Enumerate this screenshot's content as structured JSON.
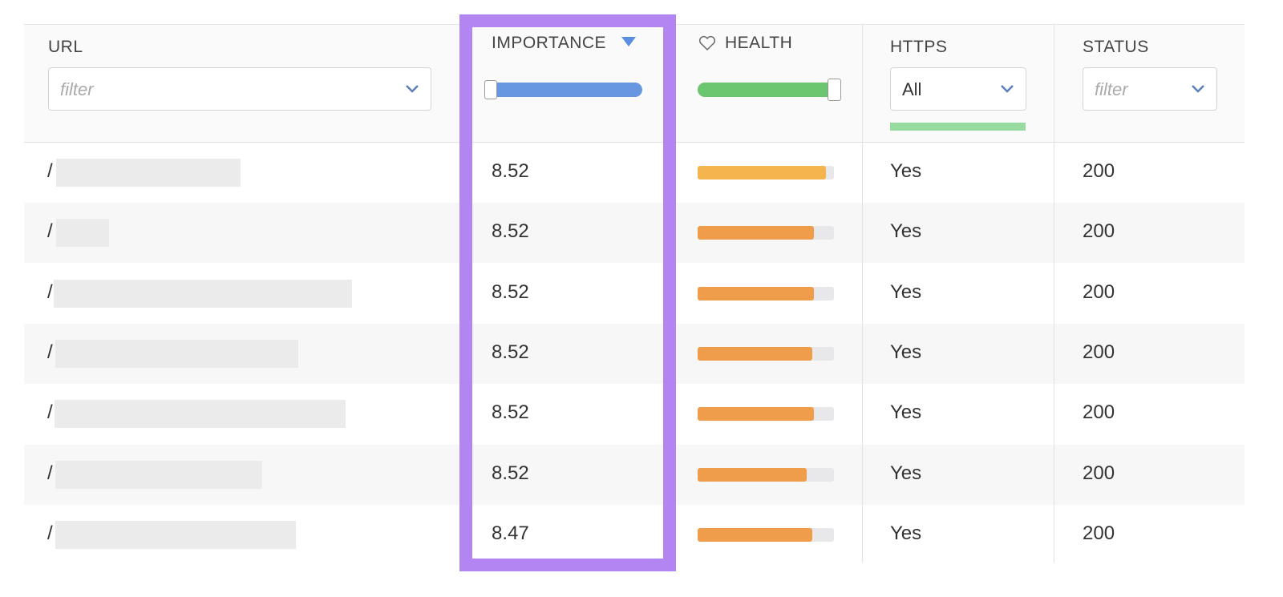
{
  "table": {
    "header": {
      "url": "URL",
      "url_filter": "filter",
      "importance": "IMPORTANCE",
      "health": "HEALTH",
      "https": "HTTPS",
      "https_filter": "All",
      "status": "STATUS",
      "status_filter": "filter"
    },
    "rows": [
      {
        "url": "/",
        "importance": 8.52,
        "health": 94,
        "health_color": "#f4b54e",
        "https": "Yes",
        "status": 200
      },
      {
        "url": "/",
        "importance": 8.52,
        "health": 85,
        "health_color": "#f09d4b",
        "https": "Yes",
        "status": 200
      },
      {
        "url": "/",
        "importance": 8.52,
        "health": 85,
        "health_color": "#f09d4b",
        "https": "Yes",
        "status": 200
      },
      {
        "url": "/",
        "importance": 8.52,
        "health": 84,
        "health_color": "#f09d4b",
        "https": "Yes",
        "status": 200
      },
      {
        "url": "/",
        "importance": 8.52,
        "health": 85,
        "health_color": "#f09d4b",
        "https": "Yes",
        "status": 200
      },
      {
        "url": "/",
        "importance": 8.52,
        "health": 80,
        "health_color": "#f09d4b",
        "https": "Yes",
        "status": 200
      },
      {
        "url": "/",
        "importance": 8.47,
        "health": 84,
        "health_color": "#f09d4b",
        "https": "Yes",
        "status": 200
      }
    ]
  }
}
